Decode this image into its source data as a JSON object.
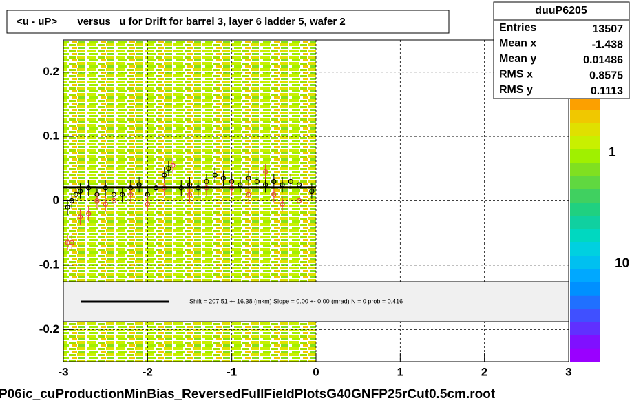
{
  "chart_data": {
    "type": "profile",
    "title": "<u - uP>       versus   u for Drift for barrel 3, layer 6 ladder 5, wafer 2",
    "xlim": [
      -3,
      3
    ],
    "ylim": [
      -0.25,
      0.25
    ],
    "xticks": [
      -3,
      -2,
      -1,
      0,
      1,
      2,
      3
    ],
    "yticks": [
      -0.2,
      -0.1,
      0,
      0.1,
      0.2
    ],
    "grid": true,
    "series": [
      {
        "color": "#000000",
        "error": 0.012,
        "x": [
          -2.95,
          -2.9,
          -2.85,
          -2.8,
          -2.7,
          -2.6,
          -2.5,
          -2.4,
          -2.3,
          -2.2,
          -2.1,
          -2.0,
          -1.9,
          -1.8,
          -1.75,
          -1.6,
          -1.5,
          -1.4,
          -1.3,
          -1.2,
          -1.1,
          -1.0,
          -0.9,
          -0.8,
          -0.7,
          -0.6,
          -0.5,
          -0.4,
          -0.3,
          -0.2,
          -0.05
        ],
        "values": [
          -0.01,
          0.0,
          0.01,
          0.015,
          0.02,
          0.01,
          0.02,
          0.01,
          0.01,
          0.02,
          0.025,
          0.01,
          0.02,
          0.04,
          0.05,
          0.02,
          0.025,
          0.02,
          0.03,
          0.04,
          0.035,
          0.03,
          0.025,
          0.035,
          0.03,
          0.025,
          0.03,
          0.025,
          0.03,
          0.025,
          0.015
        ]
      },
      {
        "color": "#e8463c",
        "error": 0.012,
        "x": [
          -2.95,
          -2.9,
          -2.8,
          -2.7,
          -2.6,
          -2.5,
          -2.4,
          -2.2,
          -2.0,
          -1.8,
          -1.7,
          -1.5,
          -1.3,
          -1.0,
          -0.8,
          -0.6,
          -0.5,
          -0.4,
          -0.2
        ],
        "values": [
          -0.065,
          -0.065,
          -0.025,
          -0.02,
          0.0,
          -0.005,
          0.0,
          0.01,
          -0.005,
          0.02,
          0.055,
          0.01,
          0.02,
          0.02,
          0.01,
          0.045,
          0.01,
          -0.005,
          0.0
        ]
      }
    ],
    "fit": {
      "y": 0.021,
      "x": [
        -3,
        0
      ]
    },
    "fit_label": "Shift =   207.51 +- 16.38 (mkm) Slope =     0.00 +- 0.00 (mrad)  N = 0 prob = 0.416",
    "stats": {
      "name": "duuP6205",
      "rows": [
        [
          "Entries",
          13507
        ],
        [
          "Mean x",
          -1.438
        ],
        [
          "Mean y",
          0.01486
        ],
        [
          "RMS x",
          0.8575
        ],
        [
          "RMS y",
          0.1113
        ]
      ]
    },
    "colorbar": {
      "labels": [
        "1",
        "10"
      ],
      "colors": [
        "#fca000",
        "#f0c800",
        "#e0e000",
        "#c8f000",
        "#a0f000",
        "#80e020",
        "#60d840",
        "#40d060",
        "#20d080",
        "#10d0a0",
        "#00d8c0",
        "#00d0e0",
        "#00c0f0",
        "#00a8ff",
        "#0090ff",
        "#2070ff",
        "#4050ff",
        "#6030ff",
        "#8010ff",
        "#9a00ff"
      ]
    },
    "footer": "P06ic_cuProductionMinBias_ReversedFullFieldPlotsG40GNFP25rCut0.5cm.root"
  }
}
